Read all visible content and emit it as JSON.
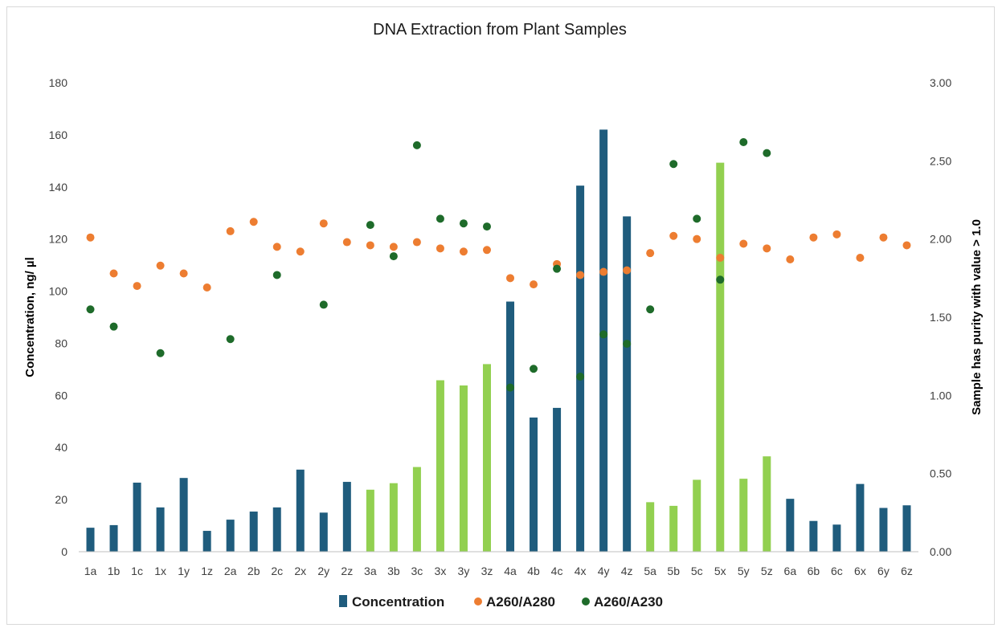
{
  "chart_data": {
    "type": "bar",
    "title": "DNA Extraction from Plant Samples",
    "ylabel": "Concentration, ng/ µl",
    "y2label": "Sample has purity with value > 1.0",
    "ylim": [
      0,
      180
    ],
    "y2lim": [
      0,
      3
    ],
    "yticks": [
      "0",
      "20",
      "40",
      "60",
      "80",
      "100",
      "120",
      "140",
      "160",
      "180"
    ],
    "y2ticks": [
      "0.00",
      "0.50",
      "1.00",
      "1.50",
      "2.00",
      "2.50",
      "3.00"
    ],
    "categories": [
      "1a",
      "1b",
      "1c",
      "1x",
      "1y",
      "1z",
      "2a",
      "2b",
      "2c",
      "2x",
      "2y",
      "2z",
      "3a",
      "3b",
      "3c",
      "3x",
      "3y",
      "3z",
      "4a",
      "4b",
      "4c",
      "4x",
      "4y",
      "4z",
      "5a",
      "5b",
      "5c",
      "5x",
      "5y",
      "5z",
      "6a",
      "6b",
      "6c",
      "6x",
      "6y",
      "6z"
    ],
    "series": [
      {
        "name": "Concentration",
        "kind": "bar",
        "axis": "left",
        "color": "#1f5c7d",
        "highlight_color": "#92d050",
        "values": [
          9.2,
          10.2,
          26.5,
          17,
          28.3,
          8,
          12.3,
          15.4,
          17,
          31.5,
          15,
          26.8,
          23.8,
          26.3,
          32.5,
          65.8,
          63.8,
          72,
          96,
          51.5,
          55.2,
          140.5,
          162,
          128.7,
          19,
          17.6,
          27.6,
          149.3,
          28,
          36.6,
          20.3,
          11.8,
          10.4,
          26,
          16.8,
          17.8
        ],
        "highlight": [
          false,
          false,
          false,
          false,
          false,
          false,
          false,
          false,
          false,
          false,
          false,
          false,
          true,
          true,
          true,
          true,
          true,
          true,
          false,
          false,
          false,
          false,
          false,
          false,
          true,
          true,
          true,
          true,
          true,
          true,
          false,
          false,
          false,
          false,
          false,
          false
        ]
      },
      {
        "name": "A260/A280",
        "kind": "scatter",
        "axis": "right",
        "color": "#ed7d31",
        "values": [
          2.01,
          1.78,
          1.7,
          1.83,
          1.78,
          1.69,
          2.05,
          2.11,
          1.95,
          1.92,
          2.1,
          1.98,
          1.96,
          1.95,
          1.98,
          1.94,
          1.92,
          1.93,
          1.75,
          1.71,
          1.84,
          1.77,
          1.79,
          1.8,
          1.91,
          2.02,
          2.0,
          1.88,
          1.97,
          1.94,
          1.87,
          2.01,
          2.03,
          1.88,
          2.01,
          1.96
        ]
      },
      {
        "name": "A260/A230",
        "kind": "scatter",
        "axis": "right",
        "color": "#1e6b2a",
        "values": [
          1.55,
          1.44,
          null,
          1.27,
          null,
          null,
          1.36,
          null,
          1.77,
          null,
          1.58,
          null,
          2.09,
          1.89,
          2.6,
          2.13,
          2.1,
          2.08,
          1.05,
          1.17,
          1.81,
          1.12,
          1.39,
          1.33,
          1.55,
          2.48,
          2.13,
          1.74,
          2.62,
          2.55,
          null,
          null,
          null,
          null,
          null,
          null
        ]
      }
    ],
    "legend_position": "bottom",
    "grid": false
  }
}
